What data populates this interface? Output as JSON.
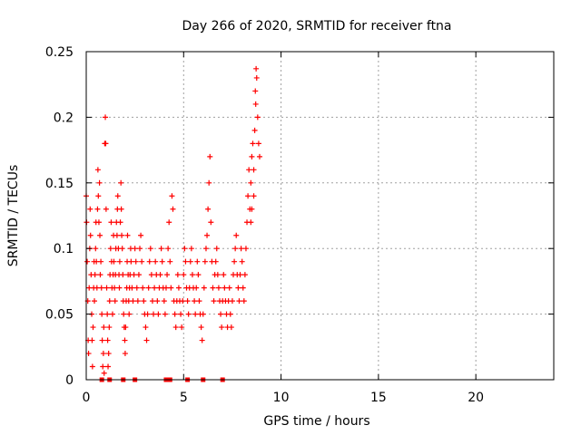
{
  "chart_data": {
    "type": "scatter",
    "title": "Day 266 of 2020, SRMTID for receiver ftna",
    "xlabel": "GPS time / hours",
    "ylabel": "SRMTID / TECUs",
    "xlim": [
      0,
      24
    ],
    "ylim": [
      0,
      0.25
    ],
    "xticks": [
      0,
      5,
      10,
      15,
      20
    ],
    "xtick_labels": [
      "0",
      "5",
      "10",
      "15",
      "20"
    ],
    "yticks": [
      0,
      0.05,
      0.1,
      0.15,
      0.2,
      0.25
    ],
    "ytick_labels": [
      "0",
      "0.05",
      "0.1",
      "0.15",
      "0.2",
      "0.25"
    ],
    "grid": true,
    "legend": "none",
    "series": [
      {
        "color": "#ff0000",
        "marker": "plus",
        "points": [
          [
            0.0,
            0.14
          ],
          [
            0.02,
            0.12
          ],
          [
            0.05,
            0.09
          ],
          [
            0.08,
            0.06
          ],
          [
            0.1,
            0.03
          ],
          [
            0.12,
            0.02
          ],
          [
            0.15,
            0.07
          ],
          [
            0.18,
            0.1
          ],
          [
            0.2,
            0.13
          ],
          [
            0.22,
            0.11
          ],
          [
            0.25,
            0.08
          ],
          [
            0.28,
            0.05
          ],
          [
            0.3,
            0.03
          ],
          [
            0.32,
            0.01
          ],
          [
            0.35,
            0.04
          ],
          [
            0.38,
            0.07
          ],
          [
            0.4,
            0.09
          ],
          [
            0.42,
            0.06
          ],
          [
            0.45,
            0.08
          ],
          [
            0.48,
            0.1
          ],
          [
            0.5,
            0.12
          ],
          [
            0.52,
            0.09
          ],
          [
            0.55,
            0.07
          ],
          [
            0.58,
            0.13
          ],
          [
            0.6,
            0.16
          ],
          [
            0.62,
            0.14
          ],
          [
            0.65,
            0.12
          ],
          [
            0.68,
            0.15
          ],
          [
            0.7,
            0.11
          ],
          [
            0.72,
            0.08
          ],
          [
            0.75,
            0.09
          ],
          [
            0.78,
            0.07
          ],
          [
            0.8,
            0.05
          ],
          [
            0.82,
            0.03
          ],
          [
            0.85,
            0.01
          ],
          [
            0.88,
            0.02
          ],
          [
            0.9,
            0.04
          ],
          [
            0.92,
            0.005
          ],
          [
            0.95,
            0.18
          ],
          [
            0.98,
            0.2
          ],
          [
            1.0,
            0.18
          ],
          [
            1.02,
            0.13
          ],
          [
            1.05,
            0.07
          ],
          [
            1.08,
            0.05
          ],
          [
            1.1,
            0.03
          ],
          [
            1.12,
            0.01
          ],
          [
            1.15,
            0.02
          ],
          [
            1.18,
            0.04
          ],
          [
            1.2,
            0.06
          ],
          [
            1.22,
            0.08
          ],
          [
            1.25,
            0.1
          ],
          [
            1.28,
            0.12
          ],
          [
            1.3,
            0.09
          ],
          [
            1.32,
            0.07
          ],
          [
            1.35,
            0.05
          ],
          [
            1.38,
            0.08
          ],
          [
            1.4,
            0.11
          ],
          [
            1.42,
            0.09
          ],
          [
            1.45,
            0.07
          ],
          [
            1.48,
            0.06
          ],
          [
            1.5,
            0.08
          ],
          [
            1.52,
            0.1
          ],
          [
            1.55,
            0.12
          ],
          [
            1.58,
            0.11
          ],
          [
            1.6,
            0.13
          ],
          [
            1.62,
            0.14
          ],
          [
            1.65,
            0.1
          ],
          [
            1.68,
            0.08
          ],
          [
            1.7,
            0.07
          ],
          [
            1.72,
            0.09
          ],
          [
            1.75,
            0.12
          ],
          [
            1.78,
            0.15
          ],
          [
            1.8,
            0.13
          ],
          [
            1.82,
            0.11
          ],
          [
            1.85,
            0.1
          ],
          [
            1.88,
            0.08
          ],
          [
            1.9,
            0.06
          ],
          [
            1.92,
            0.05
          ],
          [
            1.95,
            0.04
          ],
          [
            1.98,
            0.03
          ],
          [
            2.0,
            0.02
          ],
          [
            2.02,
            0.04
          ],
          [
            2.05,
            0.06
          ],
          [
            2.08,
            0.07
          ],
          [
            2.1,
            0.09
          ],
          [
            2.12,
            0.11
          ],
          [
            2.15,
            0.08
          ],
          [
            2.18,
            0.06
          ],
          [
            2.2,
            0.05
          ],
          [
            2.22,
            0.07
          ],
          [
            2.25,
            0.08
          ],
          [
            2.28,
            0.1
          ],
          [
            2.3,
            0.09
          ],
          [
            2.35,
            0.07
          ],
          [
            2.4,
            0.06
          ],
          [
            2.45,
            0.08
          ],
          [
            2.5,
            0.1
          ],
          [
            2.55,
            0.09
          ],
          [
            2.6,
            0.07
          ],
          [
            2.65,
            0.06
          ],
          [
            2.7,
            0.08
          ],
          [
            2.75,
            0.1
          ],
          [
            2.8,
            0.11
          ],
          [
            2.85,
            0.09
          ],
          [
            2.9,
            0.07
          ],
          [
            2.95,
            0.06
          ],
          [
            3.0,
            0.05
          ],
          [
            3.05,
            0.04
          ],
          [
            3.1,
            0.03
          ],
          [
            3.15,
            0.05
          ],
          [
            3.2,
            0.07
          ],
          [
            3.25,
            0.09
          ],
          [
            3.3,
            0.1
          ],
          [
            3.35,
            0.08
          ],
          [
            3.4,
            0.06
          ],
          [
            3.45,
            0.05
          ],
          [
            3.5,
            0.07
          ],
          [
            3.55,
            0.09
          ],
          [
            3.6,
            0.08
          ],
          [
            3.65,
            0.06
          ],
          [
            3.7,
            0.05
          ],
          [
            3.75,
            0.07
          ],
          [
            3.8,
            0.08
          ],
          [
            3.85,
            0.1
          ],
          [
            3.9,
            0.09
          ],
          [
            3.95,
            0.07
          ],
          [
            4.0,
            0.06
          ],
          [
            4.05,
            0.05
          ],
          [
            4.1,
            0.07
          ],
          [
            4.15,
            0.08
          ],
          [
            4.2,
            0.1
          ],
          [
            4.25,
            0.12
          ],
          [
            4.3,
            0.09
          ],
          [
            4.35,
            0.07
          ],
          [
            4.4,
            0.14
          ],
          [
            4.45,
            0.13
          ],
          [
            4.5,
            0.06
          ],
          [
            4.55,
            0.05
          ],
          [
            4.6,
            0.04
          ],
          [
            4.65,
            0.06
          ],
          [
            4.7,
            0.08
          ],
          [
            4.75,
            0.07
          ],
          [
            4.8,
            0.06
          ],
          [
            4.85,
            0.05
          ],
          [
            4.9,
            0.04
          ],
          [
            4.95,
            0.06
          ],
          [
            5.0,
            0.08
          ],
          [
            5.05,
            0.1
          ],
          [
            5.1,
            0.09
          ],
          [
            5.15,
            0.07
          ],
          [
            5.2,
            0.06
          ],
          [
            5.25,
            0.05
          ],
          [
            5.3,
            0.07
          ],
          [
            5.35,
            0.09
          ],
          [
            5.4,
            0.1
          ],
          [
            5.45,
            0.08
          ],
          [
            5.5,
            0.07
          ],
          [
            5.55,
            0.06
          ],
          [
            5.6,
            0.05
          ],
          [
            5.65,
            0.07
          ],
          [
            5.7,
            0.09
          ],
          [
            5.75,
            0.08
          ],
          [
            5.8,
            0.06
          ],
          [
            5.85,
            0.05
          ],
          [
            5.9,
            0.04
          ],
          [
            5.95,
            0.03
          ],
          [
            6.0,
            0.05
          ],
          [
            6.05,
            0.07
          ],
          [
            6.1,
            0.09
          ],
          [
            6.15,
            0.1
          ],
          [
            6.2,
            0.11
          ],
          [
            6.25,
            0.13
          ],
          [
            6.3,
            0.15
          ],
          [
            6.35,
            0.17
          ],
          [
            6.4,
            0.12
          ],
          [
            6.45,
            0.09
          ],
          [
            6.5,
            0.07
          ],
          [
            6.55,
            0.06
          ],
          [
            6.6,
            0.08
          ],
          [
            6.65,
            0.09
          ],
          [
            6.7,
            0.1
          ],
          [
            6.75,
            0.08
          ],
          [
            6.8,
            0.07
          ],
          [
            6.85,
            0.06
          ],
          [
            6.9,
            0.05
          ],
          [
            6.95,
            0.04
          ],
          [
            7.0,
            0.06
          ],
          [
            7.05,
            0.08
          ],
          [
            7.1,
            0.07
          ],
          [
            7.15,
            0.06
          ],
          [
            7.2,
            0.05
          ],
          [
            7.25,
            0.04
          ],
          [
            7.3,
            0.06
          ],
          [
            7.35,
            0.07
          ],
          [
            7.4,
            0.05
          ],
          [
            7.45,
            0.04
          ],
          [
            7.5,
            0.06
          ],
          [
            7.55,
            0.08
          ],
          [
            7.6,
            0.09
          ],
          [
            7.65,
            0.1
          ],
          [
            7.7,
            0.11
          ],
          [
            7.75,
            0.08
          ],
          [
            7.8,
            0.07
          ],
          [
            7.85,
            0.06
          ],
          [
            7.9,
            0.08
          ],
          [
            7.95,
            0.1
          ],
          [
            8.0,
            0.09
          ],
          [
            8.05,
            0.07
          ],
          [
            8.1,
            0.06
          ],
          [
            8.15,
            0.08
          ],
          [
            8.2,
            0.1
          ],
          [
            8.25,
            0.12
          ],
          [
            8.3,
            0.14
          ],
          [
            8.35,
            0.16
          ],
          [
            8.4,
            0.13
          ],
          [
            8.45,
            0.15
          ],
          [
            8.5,
            0.17
          ],
          [
            8.55,
            0.18
          ],
          [
            8.6,
            0.16
          ],
          [
            8.65,
            0.19
          ],
          [
            8.7,
            0.21
          ],
          [
            8.75,
            0.23
          ],
          [
            8.8,
            0.2
          ],
          [
            8.85,
            0.18
          ],
          [
            8.9,
            0.17
          ],
          [
            8.72,
            0.237
          ],
          [
            8.68,
            0.22
          ],
          [
            8.6,
            0.14
          ],
          [
            8.5,
            0.13
          ],
          [
            8.45,
            0.12
          ],
          [
            0.8,
            0.0
          ],
          [
            1.2,
            0.0
          ],
          [
            1.9,
            0.0
          ],
          [
            2.5,
            0.0
          ],
          [
            4.1,
            0.0
          ],
          [
            4.3,
            0.0
          ],
          [
            5.2,
            0.0
          ],
          [
            6.0,
            0.0
          ],
          [
            7.0,
            0.0
          ]
        ]
      }
    ]
  }
}
